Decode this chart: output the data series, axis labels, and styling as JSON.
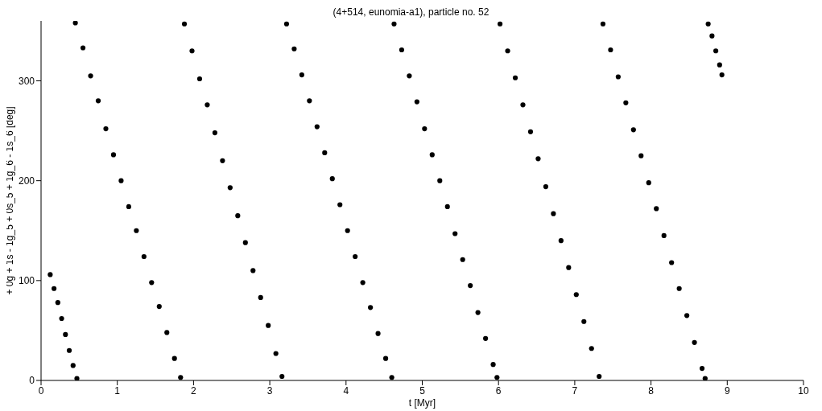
{
  "chart_data": {
    "type": "scatter",
    "title": "(4+514, eunomia-a1), particle no. 52",
    "xlabel": "t [Myr]",
    "ylabel": "+ 0g + 1s - 1g_5 + 0s_5 + 1g_6 - 1s_6 [deg]",
    "xlim": [
      0,
      10
    ],
    "xticks": [
      0,
      1,
      2,
      3,
      4,
      5,
      6,
      7,
      8,
      9,
      10
    ],
    "ylim": [
      0,
      360
    ],
    "yticks": [
      0,
      100,
      200,
      300
    ],
    "grid": false,
    "legend": false,
    "marker": "circle",
    "series": [
      {
        "color": "#000000",
        "x": [
          0.12,
          0.17,
          0.22,
          0.27,
          0.32,
          0.37,
          0.42,
          0.47,
          0.45,
          0.55,
          0.65,
          0.75,
          0.85,
          0.95,
          1.05,
          1.15,
          1.25,
          1.35,
          1.45,
          1.55,
          1.65,
          1.75,
          1.83,
          1.88,
          1.98,
          2.08,
          2.18,
          2.28,
          2.38,
          2.48,
          2.58,
          2.68,
          2.78,
          2.88,
          2.98,
          3.08,
          3.16,
          3.22,
          3.32,
          3.42,
          3.52,
          3.62,
          3.72,
          3.82,
          3.92,
          4.02,
          4.12,
          4.22,
          4.32,
          4.42,
          4.52,
          4.6,
          4.63,
          4.73,
          4.83,
          4.93,
          5.03,
          5.13,
          5.23,
          5.33,
          5.43,
          5.53,
          5.63,
          5.73,
          5.83,
          5.93,
          5.98,
          6.02,
          6.12,
          6.22,
          6.32,
          6.42,
          6.52,
          6.62,
          6.72,
          6.82,
          6.92,
          7.02,
          7.12,
          7.22,
          7.32,
          7.37,
          7.47,
          7.57,
          7.67,
          7.77,
          7.87,
          7.97,
          8.07,
          8.17,
          8.27,
          8.37,
          8.47,
          8.57,
          8.67,
          8.71,
          8.75,
          8.8,
          8.85,
          8.9,
          8.93
        ],
        "values": [
          106,
          92,
          78,
          62,
          46,
          30,
          15,
          2,
          358,
          333,
          305,
          280,
          252,
          226,
          200,
          174,
          150,
          124,
          98,
          74,
          48,
          22,
          3,
          357,
          330,
          302,
          276,
          248,
          220,
          193,
          165,
          138,
          110,
          83,
          55,
          27,
          4,
          357,
          332,
          306,
          280,
          254,
          228,
          202,
          176,
          150,
          124,
          98,
          73,
          47,
          22,
          3,
          357,
          331,
          305,
          279,
          252,
          226,
          200,
          174,
          147,
          121,
          95,
          68,
          42,
          16,
          3,
          357,
          330,
          303,
          276,
          249,
          222,
          194,
          167,
          140,
          113,
          86,
          59,
          32,
          4,
          357,
          331,
          304,
          278,
          251,
          225,
          198,
          172,
          145,
          118,
          92,
          65,
          38,
          12,
          2,
          357,
          345,
          330,
          316,
          306
        ]
      }
    ]
  }
}
